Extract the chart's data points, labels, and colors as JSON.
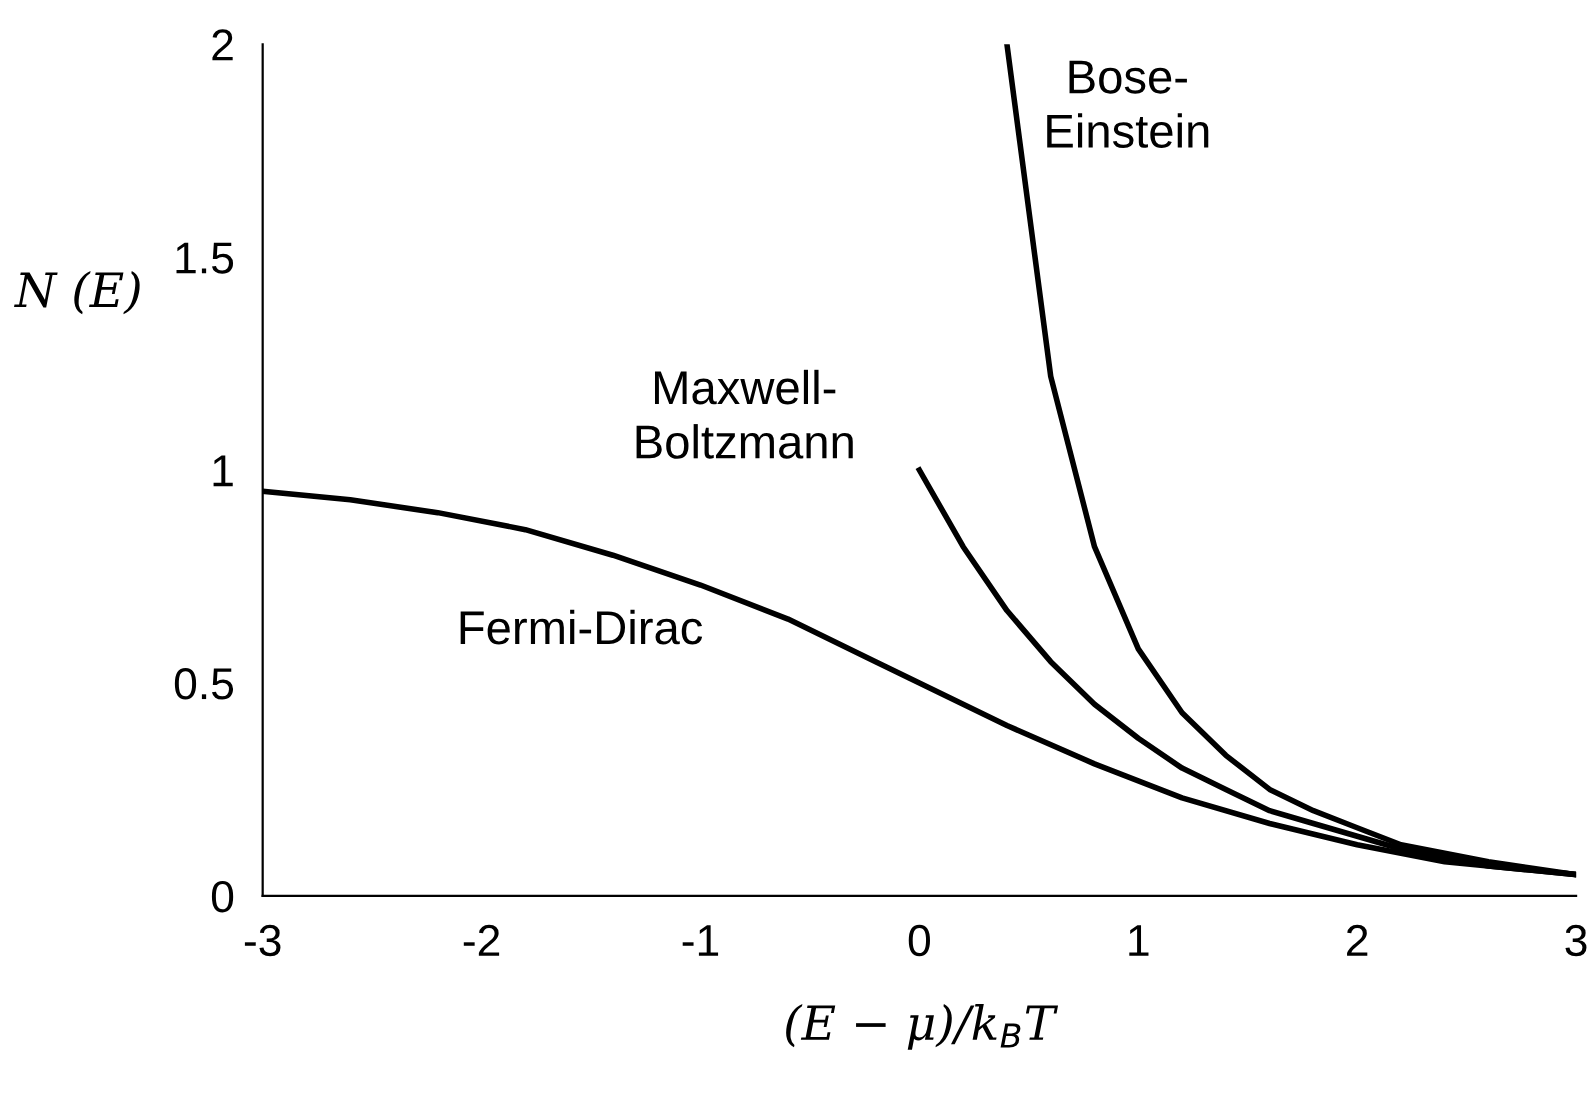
{
  "chart_data": {
    "type": "line",
    "xlabel": "(E − μ)/k$_{B}$T",
    "ylabel": "N (E)",
    "xlim": [
      -3,
      3
    ],
    "ylim": [
      0,
      2
    ],
    "xticks": [
      -3,
      -2,
      -1,
      0,
      1,
      2,
      3
    ],
    "yticks": [
      0,
      0.5,
      1,
      1.5,
      2
    ],
    "grid": false,
    "legend": false,
    "marker": "none",
    "line_style": "solid",
    "series": [
      {
        "name": "Fermi-Dirac",
        "color": "#000000",
        "x": [
          -3,
          -2.6,
          -2.2,
          -1.8,
          -1.4,
          -1.0,
          -0.6,
          -0.2,
          0,
          0.4,
          0.8,
          1.2,
          1.6,
          2.0,
          2.4,
          2.8,
          3
        ],
        "values": [
          0.95,
          0.93,
          0.9,
          0.86,
          0.8,
          0.73,
          0.65,
          0.55,
          0.5,
          0.4,
          0.31,
          0.23,
          0.17,
          0.12,
          0.08,
          0.06,
          0.05
        ]
      },
      {
        "name": "Maxwell-\nBoltzmann",
        "color": "#000000",
        "x": [
          0,
          0.2,
          0.4,
          0.6,
          0.8,
          1.0,
          1.2,
          1.4,
          1.6,
          1.8,
          2.0,
          2.2,
          2.4,
          2.6,
          2.8,
          3
        ],
        "values": [
          1,
          0.82,
          0.67,
          0.55,
          0.45,
          0.37,
          0.3,
          0.25,
          0.2,
          0.17,
          0.14,
          0.11,
          0.09,
          0.07,
          0.06,
          0.05
        ]
      },
      {
        "name": "Bose-\nEinstein",
        "color": "#000000",
        "x": [
          0.4,
          0.6,
          0.8,
          1.0,
          1.2,
          1.4,
          1.6,
          1.8,
          2.0,
          2.2,
          2.4,
          2.6,
          2.8,
          3
        ],
        "values": [
          2.0,
          1.22,
          0.82,
          0.58,
          0.43,
          0.33,
          0.25,
          0.2,
          0.16,
          0.12,
          0.1,
          0.08,
          0.065,
          0.05
        ]
      }
    ]
  }
}
